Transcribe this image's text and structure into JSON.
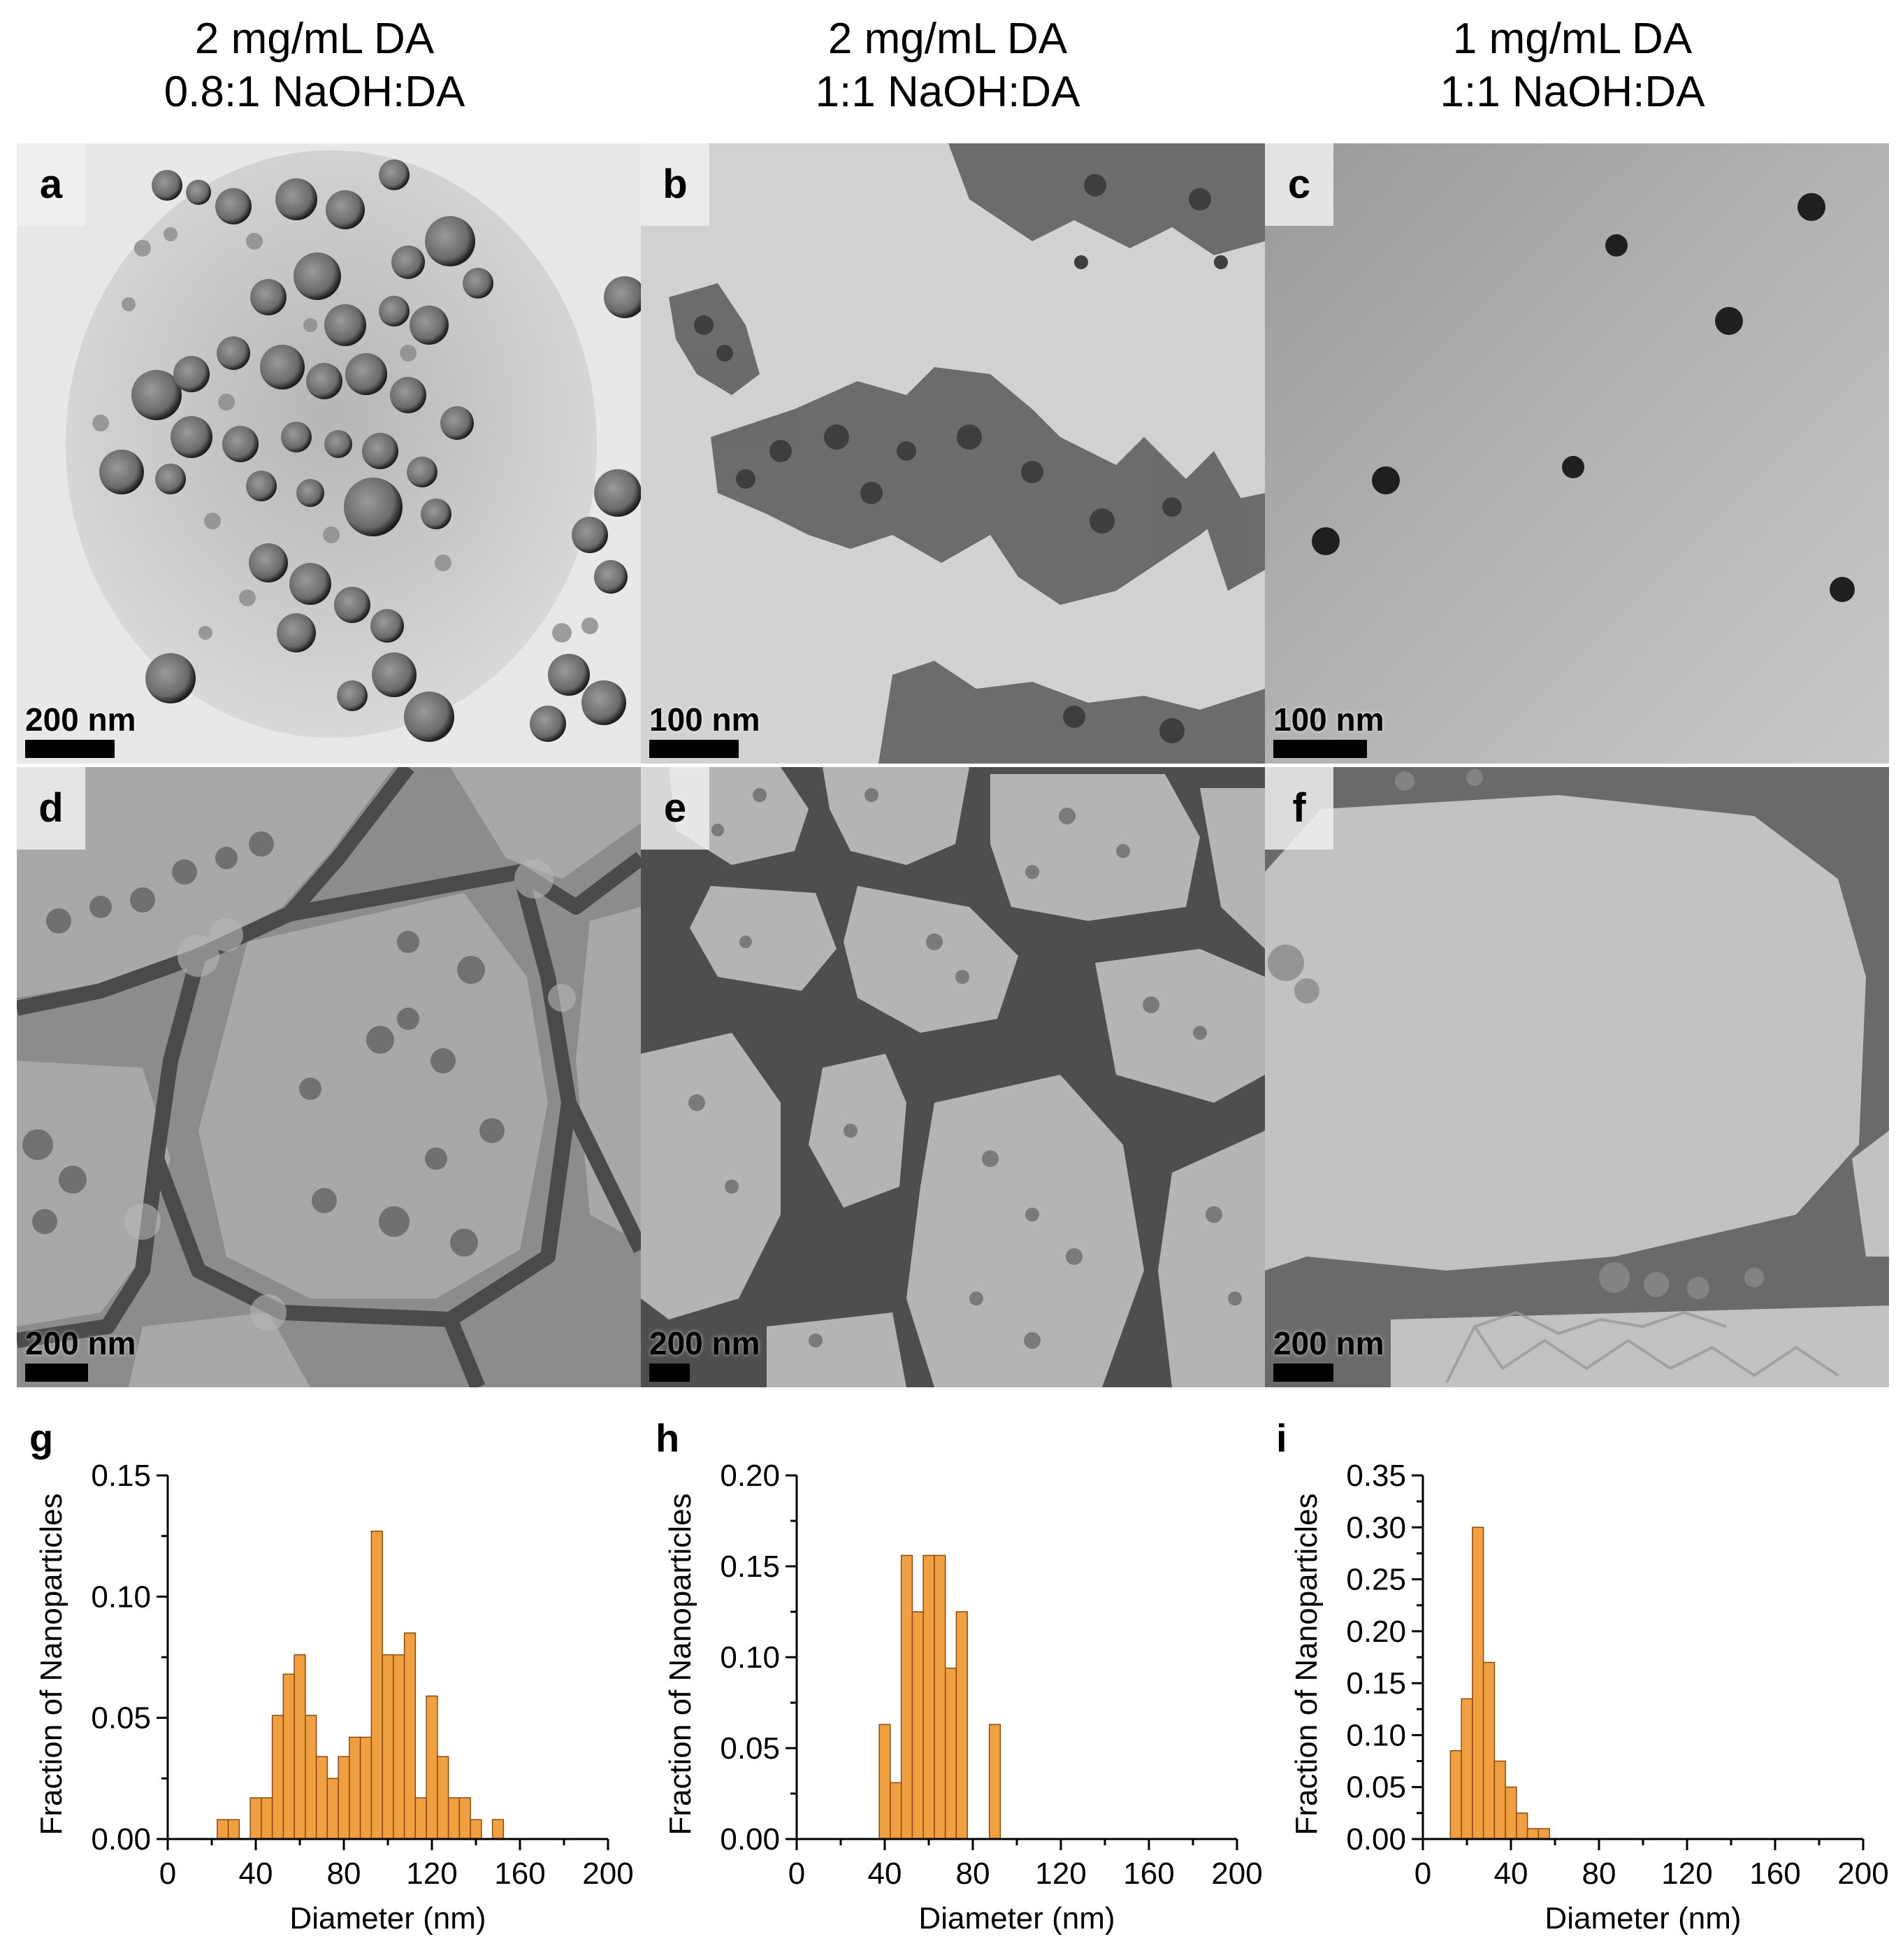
{
  "columns": [
    {
      "line1": "2 mg/mL DA",
      "line2": "0.8:1 NaOH:DA"
    },
    {
      "line1": "2 mg/mL DA",
      "line2": "1:1 NaOH:DA"
    },
    {
      "line1": "1 mg/mL DA",
      "line2": "1:1 NaOH:DA"
    }
  ],
  "micrographs": [
    {
      "letter": "a",
      "scale": "200 nm"
    },
    {
      "letter": "b",
      "scale": "100 nm"
    },
    {
      "letter": "c",
      "scale": "100 nm"
    },
    {
      "letter": "d",
      "scale": "200 nm"
    },
    {
      "letter": "e",
      "scale": "200 nm"
    },
    {
      "letter": "f",
      "scale": "200 nm"
    }
  ],
  "colors": {
    "bar_fill": "#F0A040",
    "bar_stroke": "#8a4a10"
  },
  "chart_data": [
    {
      "type": "bar",
      "letter": "g",
      "xlabel": "Diameter (nm)",
      "ylabel": "Fraction of Nanoparticles",
      "xlim": [
        0,
        200
      ],
      "ylim": [
        0,
        0.15
      ],
      "xticks": [
        0,
        40,
        80,
        120,
        160,
        200
      ],
      "yticks": [
        "0.00",
        "0.05",
        "0.10",
        "0.15"
      ],
      "bin_width": 5,
      "bin_start": 22.5,
      "values": [
        0.008,
        0.008,
        0,
        0.017,
        0.017,
        0.051,
        0.068,
        0.076,
        0.051,
        0.034,
        0.025,
        0.034,
        0.042,
        0.042,
        0.127,
        0.076,
        0.076,
        0.085,
        0.017,
        0.059,
        0.034,
        0.017,
        0.017,
        0.008,
        0,
        0.008
      ]
    },
    {
      "type": "bar",
      "letter": "h",
      "xlabel": "Diameter (nm)",
      "ylabel": "Fraction of Nanoparticles",
      "xlim": [
        0,
        200
      ],
      "ylim": [
        0,
        0.2
      ],
      "xticks": [
        0,
        40,
        80,
        120,
        160,
        200
      ],
      "yticks": [
        "0.00",
        "0.05",
        "0.10",
        "0.15",
        "0.20"
      ],
      "bin_width": 5,
      "bin_start": 37.5,
      "values": [
        0.063,
        0.031,
        0.156,
        0.125,
        0.156,
        0.156,
        0.094,
        0.125,
        0,
        0,
        0.063
      ]
    },
    {
      "type": "bar",
      "letter": "i",
      "xlabel": "Diameter (nm)",
      "ylabel": "Fraction of Nanoparticles",
      "xlim": [
        0,
        200
      ],
      "ylim": [
        0,
        0.35
      ],
      "xticks": [
        0,
        40,
        80,
        120,
        160,
        200
      ],
      "yticks": [
        "0.00",
        "0.05",
        "0.10",
        "0.15",
        "0.20",
        "0.25",
        "0.30",
        "0.35"
      ],
      "bin_width": 5,
      "bin_start": 12.5,
      "values": [
        0.085,
        0.135,
        0.3,
        0.17,
        0.075,
        0.05,
        0.025,
        0.01,
        0.01
      ]
    }
  ]
}
